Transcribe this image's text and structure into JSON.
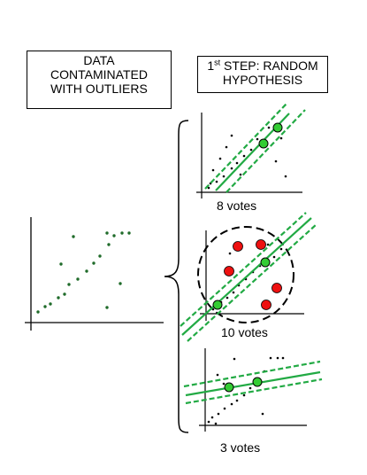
{
  "boxes": {
    "data_lines": [
      "DATA",
      "CONTAMINATED",
      "WITH OUTLIERS"
    ],
    "step": {
      "number": "1",
      "suffix": "st",
      "rest": " STEP: RANDOM",
      "line2": "HYPOTHESIS"
    }
  },
  "panels": [
    {
      "votes_label": "8 votes"
    },
    {
      "votes_label": "10 votes"
    },
    {
      "votes_label": "3 votes"
    }
  ],
  "colors": {
    "line": "#22aa44",
    "inlier": "#33cc33",
    "outlier": "#ee1111",
    "ink": "#000000"
  }
}
